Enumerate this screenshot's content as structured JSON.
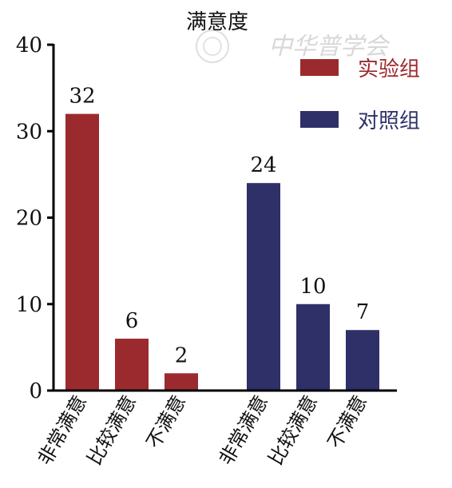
{
  "chart_data": {
    "type": "bar",
    "title": "满意度",
    "xlabel": "",
    "ylabel": "",
    "ylim": [
      0,
      40
    ],
    "yticks": [
      0,
      10,
      20,
      30,
      40
    ],
    "legend": {
      "position": "top-right"
    },
    "grid": false,
    "series": [
      {
        "name": "实验组",
        "color": "#9b2a2e",
        "categories": [
          "非常满意",
          "比较满意",
          "不满意"
        ],
        "values": [
          32,
          6,
          2
        ]
      },
      {
        "name": "对照组",
        "color": "#2f3068",
        "categories": [
          "非常满意",
          "比较满意",
          "不满意"
        ],
        "values": [
          24,
          10,
          7
        ]
      }
    ]
  },
  "watermark": {
    "text": "中华普学会"
  }
}
